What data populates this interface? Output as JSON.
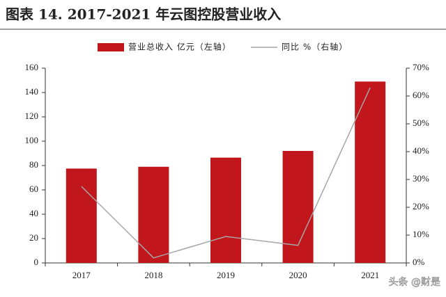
{
  "chart_data": {
    "type": "bar-line",
    "title": "图表 14. 2017-2021 年云图控股营业收入",
    "categories": [
      "2017",
      "2018",
      "2019",
      "2020",
      "2021"
    ],
    "series": [
      {
        "name": "营业总收入 亿元（左轴）",
        "type": "bar",
        "color": "#c0161c",
        "values": [
          77.5,
          79,
          86.5,
          92,
          149
        ]
      },
      {
        "name": "同比 %（右轴）",
        "type": "line",
        "axis": "y2",
        "color": "#a6a6a6",
        "values": [
          27.5,
          1.8,
          9.5,
          6.3,
          63
        ]
      }
    ],
    "ylim": [
      0,
      160
    ],
    "yticks": [
      0,
      20,
      40,
      60,
      80,
      100,
      120,
      140,
      160
    ],
    "y2lim": [
      0,
      70
    ],
    "y2ticks": [
      {
        "value": 0,
        "label": "0%"
      },
      {
        "value": 10,
        "label": "10%"
      },
      {
        "value": 20,
        "label": "20%"
      },
      {
        "value": 30,
        "label": "30%"
      },
      {
        "value": 40,
        "label": "40%"
      },
      {
        "value": 50,
        "label": "50%"
      },
      {
        "value": 60,
        "label": "60%"
      },
      {
        "value": 70,
        "label": "70%"
      }
    ],
    "watermark": "头条 @财是"
  }
}
